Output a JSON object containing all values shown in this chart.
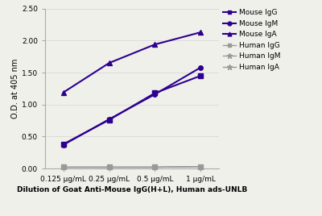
{
  "x_positions": [
    1,
    2,
    3,
    4
  ],
  "x_labels": [
    "0.125 μg/mL",
    "0.25 μg/mL",
    "0.5 μg/mL",
    "1 μg/mL"
  ],
  "series": {
    "Mouse IgG": {
      "values": [
        0.38,
        0.76,
        1.18,
        1.45
      ],
      "color": "#2d0090",
      "marker": "s",
      "markersize": 4,
      "linewidth": 1.5
    },
    "Mouse IgM": {
      "values": [
        0.37,
        0.77,
        1.16,
        1.58
      ],
      "color": "#2d0090",
      "marker": "o",
      "markersize": 4,
      "linewidth": 1.5
    },
    "Mouse IgA": {
      "values": [
        1.19,
        1.65,
        1.94,
        2.13
      ],
      "color": "#2d0090",
      "marker": "^",
      "markersize": 4,
      "linewidth": 1.5
    },
    "Human IgG": {
      "values": [
        0.02,
        0.02,
        0.02,
        0.03
      ],
      "color": "#999999",
      "marker": "s",
      "markersize": 4,
      "linewidth": 1.0
    },
    "Human IgM": {
      "values": [
        0.02,
        0.02,
        0.02,
        0.03
      ],
      "color": "#999999",
      "marker": "*",
      "markersize": 5,
      "linewidth": 1.0
    },
    "Human IgA": {
      "values": [
        0.02,
        0.02,
        0.02,
        0.03
      ],
      "color": "#999999",
      "marker": "*",
      "markersize": 5,
      "linewidth": 1.0
    }
  },
  "ylabel": "O.D. at 405 nm",
  "xlabel": "Dilution of Goat Anti-Mouse IgG(H+L), Human ads-UNLB",
  "ylim": [
    0.0,
    2.5
  ],
  "yticks": [
    0.0,
    0.5,
    1.0,
    1.5,
    2.0,
    2.5
  ],
  "background_color": "#f0f0eb",
  "grid_color": "#d8d8d8",
  "spine_color": "#aaaaaa"
}
